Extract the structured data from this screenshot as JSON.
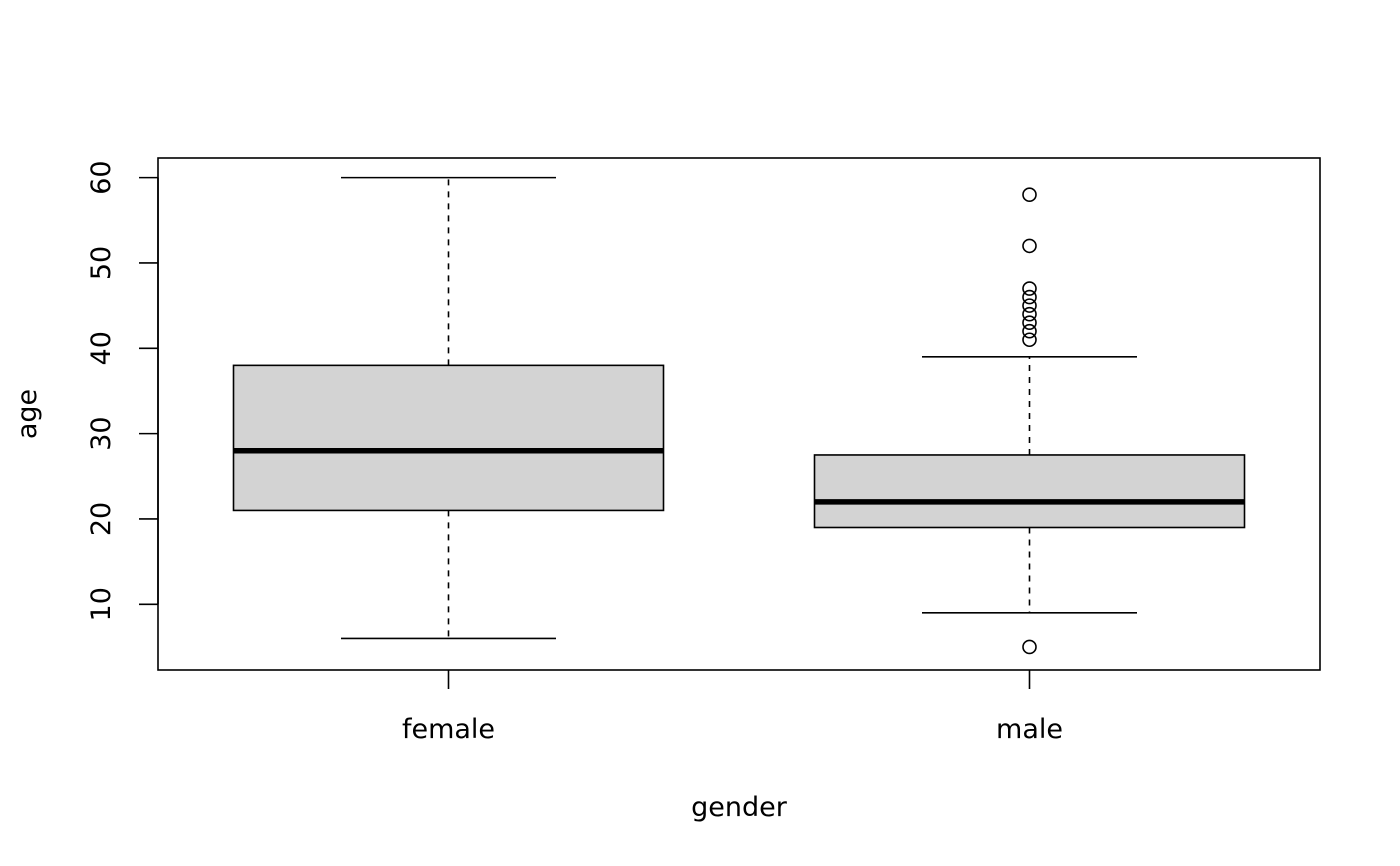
{
  "chart_data": {
    "type": "boxplot",
    "title": "",
    "xlabel": "gender",
    "ylabel": "age",
    "ylim": [
      2.3,
      62.3
    ],
    "yticks": [
      10,
      20,
      30,
      40,
      50,
      60
    ],
    "grid": false,
    "legend": "none",
    "box_fill": "#d3d3d3",
    "line_color": "#000000",
    "categories": [
      "female",
      "male"
    ],
    "boxes": [
      {
        "category": "female",
        "whisker_low": 6,
        "q1": 21,
        "median": 28,
        "q3": 38,
        "whisker_high": 60,
        "outliers": []
      },
      {
        "category": "male",
        "whisker_low": 9,
        "q1": 19,
        "median": 22,
        "q3": 27.5,
        "whisker_high": 39,
        "outliers": [
          5,
          41,
          42,
          43,
          44,
          45,
          46,
          47,
          52,
          58
        ]
      }
    ]
  }
}
